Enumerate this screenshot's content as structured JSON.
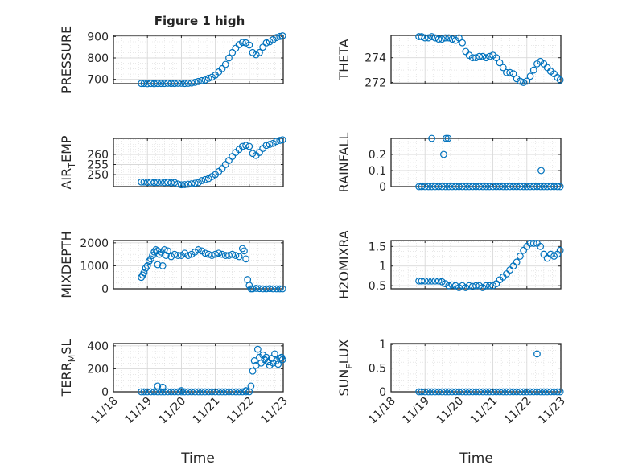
{
  "figure": {
    "title": "Figure 1 high",
    "xlabel": "Time",
    "time_ticks": [
      "11/18",
      "11/19",
      "11/20",
      "11/21",
      "11/22",
      "11/23"
    ]
  },
  "colors": {
    "marker": "#0072BD",
    "axis": "#262626",
    "grid": "#d9d9d9"
  },
  "chart_data": [
    {
      "type": "scatter",
      "ylabel": "PRESSURE",
      "ylim": [
        680,
        905
      ],
      "yticks": [
        700,
        800,
        900
      ],
      "xlim": [
        0,
        5
      ],
      "grid": true,
      "x": [
        0.82,
        0.9,
        1.0,
        1.1,
        1.2,
        1.3,
        1.4,
        1.5,
        1.6,
        1.7,
        1.8,
        1.9,
        2.0,
        2.1,
        2.2,
        2.3,
        2.4,
        2.5,
        2.6,
        2.7,
        2.8,
        2.9,
        3.0,
        3.1,
        3.2,
        3.3,
        3.4,
        3.5,
        3.6,
        3.7,
        3.8,
        3.9,
        4.0,
        4.1,
        4.2,
        4.3,
        4.4,
        4.5,
        4.6,
        4.7,
        4.8,
        4.9,
        4.98
      ],
      "y": [
        681,
        681,
        680,
        681,
        680,
        681,
        681,
        681,
        682,
        681,
        681,
        682,
        682,
        681,
        682,
        683,
        686,
        690,
        694,
        697,
        705,
        710,
        720,
        735,
        750,
        770,
        800,
        825,
        845,
        862,
        872,
        870,
        860,
        825,
        815,
        825,
        850,
        870,
        875,
        885,
        895,
        900,
        903
      ]
    },
    {
      "type": "scatter",
      "ylabel": "THETA",
      "ylim": [
        271.9,
        275.8
      ],
      "yticks": [
        272,
        274
      ],
      "xlim": [
        0,
        5
      ],
      "grid": true,
      "x": [
        0.82,
        0.9,
        1.0,
        1.1,
        1.2,
        1.3,
        1.4,
        1.5,
        1.6,
        1.7,
        1.8,
        1.9,
        2.0,
        2.1,
        2.2,
        2.3,
        2.4,
        2.5,
        2.6,
        2.7,
        2.8,
        2.9,
        3.0,
        3.1,
        3.2,
        3.3,
        3.4,
        3.5,
        3.6,
        3.7,
        3.8,
        3.9,
        4.0,
        4.1,
        4.2,
        4.3,
        4.4,
        4.5,
        4.6,
        4.7,
        4.8,
        4.9,
        4.98
      ],
      "y": [
        275.7,
        275.7,
        275.6,
        275.6,
        275.7,
        275.6,
        275.5,
        275.5,
        275.6,
        275.6,
        275.5,
        275.4,
        275.6,
        275.2,
        274.5,
        274.2,
        274.0,
        274.0,
        274.1,
        274.1,
        274.0,
        274.1,
        274.2,
        274.0,
        273.6,
        273.2,
        272.8,
        272.8,
        272.7,
        272.3,
        272.1,
        272.0,
        272.1,
        272.5,
        273.0,
        273.5,
        273.7,
        273.5,
        273.2,
        272.9,
        272.7,
        272.4,
        272.2
      ]
    },
    {
      "type": "scatter",
      "ylabel": "AIR_TEMP",
      "ylim": [
        244,
        268
      ],
      "yticks": [
        250,
        255,
        260
      ],
      "xlim": [
        0,
        5
      ],
      "grid": true,
      "x": [
        0.82,
        0.9,
        1.0,
        1.1,
        1.2,
        1.3,
        1.4,
        1.5,
        1.6,
        1.7,
        1.8,
        1.9,
        2.0,
        2.1,
        2.2,
        2.3,
        2.4,
        2.5,
        2.6,
        2.7,
        2.8,
        2.9,
        3.0,
        3.1,
        3.2,
        3.3,
        3.4,
        3.5,
        3.6,
        3.7,
        3.8,
        3.9,
        4.0,
        4.1,
        4.2,
        4.3,
        4.4,
        4.5,
        4.6,
        4.7,
        4.8,
        4.9,
        4.98
      ],
      "y": [
        246.3,
        246.3,
        246.1,
        246.2,
        246.0,
        246.1,
        246.2,
        246.0,
        246.1,
        245.9,
        246.0,
        245.3,
        244.9,
        245.0,
        245.2,
        245.4,
        245.7,
        246.0,
        247.0,
        247.5,
        248.0,
        249.0,
        250.0,
        251.5,
        253.0,
        255.0,
        257.0,
        259.0,
        261.0,
        262.5,
        264.0,
        264.5,
        264.0,
        260.5,
        259.5,
        261.0,
        263.0,
        264.5,
        265.0,
        265.5,
        266.5,
        267.0,
        267.3
      ]
    },
    {
      "type": "scatter",
      "ylabel": "RAINFALL",
      "ylim": [
        0,
        0.3
      ],
      "yticks": [
        0,
        0.1,
        0.2
      ],
      "xlim": [
        0,
        5
      ],
      "grid": true,
      "x": [
        0.82,
        0.9,
        1.0,
        1.1,
        1.2,
        1.3,
        1.4,
        1.5,
        1.6,
        1.7,
        1.8,
        1.9,
        2.0,
        2.1,
        2.2,
        2.3,
        2.4,
        2.5,
        2.6,
        2.7,
        2.8,
        2.9,
        3.0,
        3.1,
        3.2,
        3.3,
        3.4,
        3.5,
        3.6,
        3.7,
        3.8,
        3.9,
        4.0,
        4.1,
        4.2,
        4.3,
        4.4,
        4.5,
        4.6,
        4.7,
        4.8,
        4.9,
        4.98,
        1.2,
        1.55,
        1.62,
        1.68,
        4.42
      ],
      "y": [
        0,
        0,
        0,
        0,
        0,
        0,
        0,
        0,
        0,
        0,
        0,
        0,
        0,
        0,
        0,
        0,
        0,
        0,
        0,
        0,
        0,
        0,
        0,
        0,
        0,
        0,
        0,
        0,
        0,
        0,
        0,
        0,
        0,
        0,
        0,
        0,
        0,
        0,
        0,
        0,
        0,
        0,
        0,
        0.3,
        0.2,
        0.3,
        0.3,
        0.1
      ]
    },
    {
      "type": "scatter",
      "ylabel": "MIXDEPTH",
      "ylim": [
        0,
        2100
      ],
      "yticks": [
        0,
        1000,
        2000
      ],
      "xlim": [
        0,
        5
      ],
      "grid": true,
      "x": [
        0.82,
        0.86,
        0.9,
        0.95,
        1.0,
        1.05,
        1.1,
        1.15,
        1.2,
        1.25,
        1.3,
        1.35,
        1.4,
        1.5,
        1.6,
        1.7,
        1.8,
        1.9,
        2.0,
        2.1,
        2.2,
        2.3,
        2.4,
        2.5,
        2.6,
        2.7,
        2.8,
        2.9,
        3.0,
        3.1,
        3.2,
        3.3,
        3.4,
        3.5,
        3.6,
        3.7,
        3.8,
        3.85,
        3.9,
        3.95,
        4.0,
        4.05,
        4.1,
        4.2,
        4.3,
        4.4,
        4.5,
        4.6,
        4.7,
        4.8,
        4.9,
        4.98,
        1.3,
        1.45,
        1.55
      ],
      "y": [
        500,
        600,
        700,
        900,
        1000,
        1200,
        1300,
        1450,
        1600,
        1700,
        1650,
        1500,
        1600,
        1700,
        1650,
        1400,
        1500,
        1450,
        1450,
        1550,
        1450,
        1500,
        1600,
        1700,
        1650,
        1550,
        1500,
        1450,
        1500,
        1550,
        1500,
        1450,
        1450,
        1500,
        1450,
        1400,
        1750,
        1650,
        1300,
        400,
        150,
        0,
        0,
        20,
        10,
        0,
        0,
        10,
        0,
        0,
        0,
        0,
        1050,
        1000,
        1450
      ]
    },
    {
      "type": "scatter",
      "ylabel": "H2OMIXRA",
      "ylim": [
        0.42,
        1.65
      ],
      "yticks": [
        0.5,
        1,
        1.5
      ],
      "xlim": [
        0,
        5
      ],
      "grid": true,
      "x": [
        0.82,
        0.9,
        1.0,
        1.1,
        1.2,
        1.3,
        1.4,
        1.5,
        1.6,
        1.7,
        1.8,
        1.9,
        2.0,
        2.1,
        2.2,
        2.3,
        2.4,
        2.5,
        2.6,
        2.7,
        2.8,
        2.9,
        3.0,
        3.1,
        3.2,
        3.3,
        3.4,
        3.5,
        3.6,
        3.7,
        3.8,
        3.9,
        4.0,
        4.1,
        4.2,
        4.3,
        4.4,
        4.5,
        4.6,
        4.7,
        4.8,
        4.9,
        4.98
      ],
      "y": [
        0.62,
        0.62,
        0.62,
        0.62,
        0.62,
        0.62,
        0.62,
        0.6,
        0.55,
        0.5,
        0.52,
        0.5,
        0.45,
        0.5,
        0.45,
        0.5,
        0.48,
        0.5,
        0.5,
        0.45,
        0.5,
        0.5,
        0.5,
        0.55,
        0.65,
        0.72,
        0.8,
        0.9,
        1.0,
        1.1,
        1.25,
        1.4,
        1.5,
        1.58,
        1.58,
        1.58,
        1.5,
        1.3,
        1.2,
        1.3,
        1.25,
        1.3,
        1.4
      ]
    },
    {
      "type": "scatter",
      "ylabel": "TERR_MSL",
      "ylim": [
        0,
        420
      ],
      "yticks": [
        0,
        200,
        400
      ],
      "xlim": [
        0,
        5
      ],
      "grid": true,
      "x": [
        0.82,
        0.9,
        1.0,
        1.1,
        1.2,
        1.3,
        1.4,
        1.5,
        1.6,
        1.7,
        1.8,
        1.9,
        2.0,
        2.1,
        2.2,
        2.3,
        2.4,
        2.5,
        2.6,
        2.7,
        2.8,
        2.9,
        3.0,
        3.1,
        3.2,
        3.3,
        3.4,
        3.5,
        3.6,
        3.7,
        3.8,
        3.9,
        4.0,
        4.05,
        4.1,
        4.15,
        4.2,
        4.25,
        4.3,
        4.35,
        4.4,
        4.45,
        4.5,
        4.55,
        4.6,
        4.65,
        4.7,
        4.75,
        4.8,
        4.85,
        4.9,
        4.95,
        4.98,
        1.3,
        1.45,
        2.0,
        3.9
      ],
      "y": [
        0,
        0,
        0,
        0,
        0,
        0,
        0,
        0,
        0,
        0,
        0,
        0,
        0,
        0,
        0,
        0,
        0,
        0,
        0,
        0,
        0,
        0,
        0,
        0,
        0,
        0,
        0,
        0,
        0,
        0,
        0,
        0,
        0,
        50,
        180,
        270,
        230,
        370,
        300,
        250,
        320,
        280,
        300,
        260,
        230,
        290,
        250,
        330,
        270,
        240,
        290,
        300,
        280,
        50,
        40,
        10,
        10
      ]
    },
    {
      "type": "scatter",
      "ylabel": "SUN_FLUX",
      "ylim": [
        0,
        1.02
      ],
      "yticks": [
        0,
        0.5,
        1
      ],
      "xlim": [
        0,
        5
      ],
      "grid": true,
      "x": [
        0.82,
        0.9,
        1.0,
        1.1,
        1.2,
        1.3,
        1.4,
        1.5,
        1.6,
        1.7,
        1.8,
        1.9,
        2.0,
        2.1,
        2.2,
        2.3,
        2.4,
        2.5,
        2.6,
        2.7,
        2.8,
        2.9,
        3.0,
        3.1,
        3.2,
        3.3,
        3.4,
        3.5,
        3.6,
        3.7,
        3.8,
        3.9,
        4.0,
        4.1,
        4.2,
        4.3,
        4.4,
        4.5,
        4.6,
        4.7,
        4.8,
        4.9,
        4.98,
        4.3
      ],
      "y": [
        0,
        0,
        0,
        0,
        0,
        0,
        0,
        0,
        0,
        0,
        0,
        0,
        0,
        0,
        0,
        0,
        0,
        0,
        0,
        0,
        0,
        0,
        0,
        0,
        0,
        0,
        0,
        0,
        0,
        0,
        0,
        0,
        0,
        0,
        0,
        0,
        0,
        0,
        0,
        0,
        0,
        0,
        0,
        0.8
      ]
    }
  ]
}
